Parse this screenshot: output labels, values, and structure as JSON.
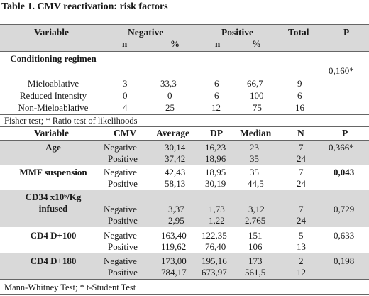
{
  "title": "Table 1. CMV reactivation: risk factors",
  "table1": {
    "headers": {
      "variable": "Variable",
      "negative": "Negative",
      "positive": "Positive",
      "total": "Total",
      "p": "P",
      "n_neg": "n",
      "pct_neg": "%",
      "n_pos": "n",
      "pct_pos": "%"
    },
    "section": "Conditioning regimen",
    "section_p": "0,160*",
    "rows": [
      {
        "label": "Mieloablative",
        "neg_n": "3",
        "neg_pct": "33,3",
        "pos_n": "6",
        "pos_pct": "66,7",
        "total": "9"
      },
      {
        "label": "Reduced Intensity",
        "neg_n": "0",
        "neg_pct": "0",
        "pos_n": "6",
        "pos_pct": "100",
        "total": "6"
      },
      {
        "label": "Non-Mieloablative",
        "neg_n": "4",
        "neg_pct": "25",
        "pos_n": "12",
        "pos_pct": "75",
        "total": "16"
      }
    ],
    "footnote": "Fisher test; * Ratio test of likelihoods"
  },
  "table2": {
    "headers": {
      "variable": "Variable",
      "cmv": "CMV",
      "average": "Average",
      "dp": "DP",
      "median": "Median",
      "n": "N",
      "p": "P"
    },
    "groups": [
      {
        "variable": "Age",
        "p": "0,366*",
        "rows": [
          {
            "cmv": "Negative",
            "average": "30,14",
            "dp": "16,23",
            "median": "23",
            "n": "7"
          },
          {
            "cmv": "Positive",
            "average": "37,42",
            "dp": "18,96",
            "median": "35",
            "n": "24"
          }
        ]
      },
      {
        "variable": "MMF suspension",
        "p": "0,043",
        "rows": [
          {
            "cmv": "Negative",
            "average": "42,43",
            "dp": "18,95",
            "median": "35",
            "n": "7"
          },
          {
            "cmv": "Positive",
            "average": "58,13",
            "dp": "30,19",
            "median": "44,5",
            "n": "24"
          }
        ]
      },
      {
        "variable_line1": "CD34 x10⁶/Kg",
        "variable_line2": "infused",
        "p": "0,729",
        "rows": [
          {
            "cmv": "Negative",
            "average": "3,37",
            "dp": "1,73",
            "median": "3,12",
            "n": "7"
          },
          {
            "cmv": "Positive",
            "average": "2,95",
            "dp": "1,22",
            "median": "2,765",
            "n": "24"
          }
        ]
      },
      {
        "variable": "CD4 D+100",
        "p": "0,633",
        "rows": [
          {
            "cmv": "Negative",
            "average": "163,40",
            "dp": "122,35",
            "median": "151",
            "n": "5"
          },
          {
            "cmv": "Positive",
            "average": "119,62",
            "dp": "76,40",
            "median": "106",
            "n": "13"
          }
        ]
      },
      {
        "variable": "CD4 D+180",
        "p": "0,198",
        "rows": [
          {
            "cmv": "Negative",
            "average": "173,00",
            "dp": "195,16",
            "median": "173",
            "n": "2"
          },
          {
            "cmv": "Positive",
            "average": "784,17",
            "dp": "673,97",
            "median": "561,5",
            "n": "12"
          }
        ]
      }
    ],
    "footnote": "Mann-Whitney Test; * t-Student Test"
  }
}
